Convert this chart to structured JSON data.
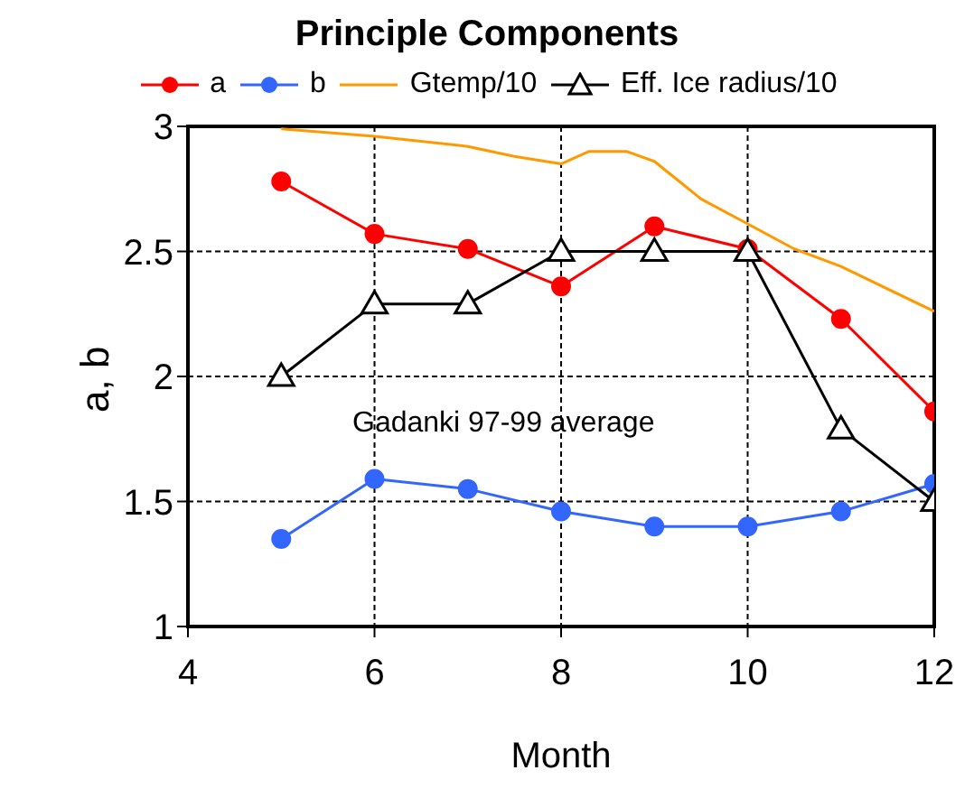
{
  "chart_data": {
    "type": "line",
    "title": "Principle Components",
    "xlabel": "Month",
    "ylabel": "a, b",
    "annotations": [
      "Gadanki 97-99 average"
    ],
    "xlim": [
      4,
      12
    ],
    "xticks": [
      4,
      6,
      8,
      10,
      12
    ],
    "ylim": [
      1,
      3
    ],
    "yticks": [
      1,
      1.5,
      2,
      2.5,
      3
    ],
    "grid": true,
    "legend": "top",
    "series": [
      {
        "name": "a",
        "color": "#ff0000",
        "marker": "circle",
        "x": [
          5,
          6,
          7,
          8,
          9,
          10,
          11,
          12
        ],
        "values": [
          2.78,
          2.57,
          2.51,
          2.36,
          2.6,
          2.51,
          2.23,
          1.86
        ]
      },
      {
        "name": "b",
        "color": "#3366ff",
        "marker": "circle",
        "x": [
          5,
          6,
          7,
          8,
          9,
          10,
          11,
          12
        ],
        "values": [
          1.35,
          1.59,
          1.55,
          1.46,
          1.4,
          1.4,
          1.46,
          1.57
        ]
      },
      {
        "name": "Gtemp/10",
        "color": "#ff9900",
        "marker": "none",
        "x": [
          5,
          6,
          7,
          7.5,
          8,
          8.3,
          8.7,
          9,
          9.5,
          10,
          10.5,
          11,
          12
        ],
        "values": [
          2.99,
          2.96,
          2.92,
          2.88,
          2.85,
          2.9,
          2.9,
          2.86,
          2.71,
          2.61,
          2.51,
          2.44,
          2.26
        ]
      },
      {
        "name": "Eff. Ice radius/10",
        "color": "#000000",
        "marker": "triangle",
        "x": [
          5,
          6,
          7,
          8,
          9,
          10,
          11,
          12
        ],
        "values": [
          2.0,
          2.29,
          2.29,
          2.5,
          2.5,
          2.5,
          1.79,
          1.5
        ]
      }
    ]
  }
}
